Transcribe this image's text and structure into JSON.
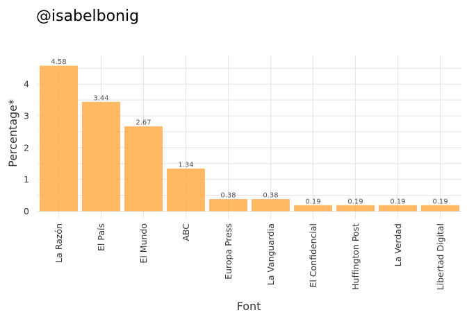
{
  "title": "@isabelbonig",
  "chart_data": {
    "type": "bar",
    "title": "@isabelbonig",
    "xlabel": "Font",
    "ylabel": "Percentage*",
    "categories": [
      "La Razón",
      "El País",
      "El Mundo",
      "ABC",
      "Europa Press",
      "La Vanguardia",
      "El Confidencial",
      "Huffington Post",
      "La Verdad",
      "Libertad Digital"
    ],
    "values": [
      4.58,
      3.44,
      2.67,
      1.34,
      0.38,
      0.38,
      0.19,
      0.19,
      0.19,
      0.19
    ],
    "data_labels": [
      "4.58",
      "3.44",
      "2.67",
      "1.34",
      "0.38",
      "0.38",
      "0.19",
      "0.19",
      "0.19",
      "0.19"
    ],
    "yticks": [
      0,
      1,
      2,
      3,
      4
    ],
    "ylim": [
      -0.23,
      4.9
    ],
    "grid": true,
    "legend": "none",
    "bar_color": "#ffa53a"
  }
}
